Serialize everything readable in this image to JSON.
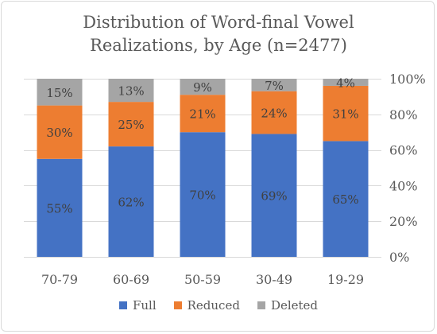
{
  "chart_data": {
    "type": "bar",
    "stacked": true,
    "title": "Distribution of Word-final Vowel Realizations, by Age (n=2477)",
    "title_lines": [
      "Distribution of Word-final Vowel",
      "Realizations, by Age (n=2477)"
    ],
    "categories": [
      "70-79",
      "60-69",
      "50-59",
      "30-49",
      "19-29"
    ],
    "series": [
      {
        "name": "Full",
        "color": "#4472c4",
        "values": [
          55,
          62,
          70,
          69,
          65
        ],
        "labels": [
          "55%",
          "62%",
          "70%",
          "69%",
          "65%"
        ]
      },
      {
        "name": "Reduced",
        "color": "#ed7d31",
        "values": [
          30,
          25,
          21,
          24,
          31
        ],
        "labels": [
          "30%",
          "25%",
          "21%",
          "24%",
          "31%"
        ]
      },
      {
        "name": "Deleted",
        "color": "#a5a5a5",
        "values": [
          15,
          13,
          9,
          7,
          4
        ],
        "labels": [
          "15%",
          "13%",
          "9%",
          "7%",
          "4%"
        ]
      }
    ],
    "ylim": [
      0,
      100
    ],
    "yticks": [
      0,
      20,
      40,
      60,
      80,
      100
    ],
    "ytick_labels": [
      "0%",
      "20%",
      "40%",
      "60%",
      "80%",
      "100%"
    ],
    "y_axis_side": "right",
    "grid": true,
    "legend_position": "bottom"
  }
}
